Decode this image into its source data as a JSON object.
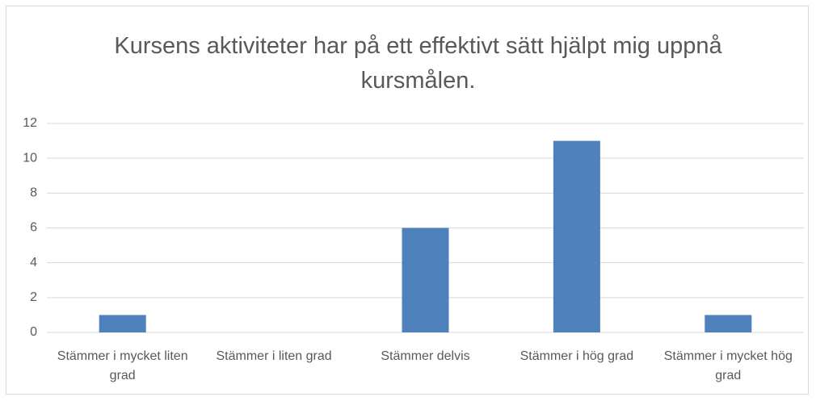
{
  "chart_data": {
    "type": "bar",
    "title": "Kursens aktiviteter har på ett effektivt sätt hjälpt mig uppnå kursmålen.",
    "categories": [
      "Stämmer i mycket liten grad",
      "Stämmer i liten grad",
      "Stämmer delvis",
      "Stämmer i hög grad",
      "Stämmer i mycket hög grad"
    ],
    "values": [
      1,
      0,
      6,
      11,
      1
    ],
    "color": "#4f81bd",
    "ylim": [
      0,
      12
    ],
    "yticks": [
      0,
      2,
      4,
      6,
      8,
      10,
      12
    ],
    "grid": true
  }
}
